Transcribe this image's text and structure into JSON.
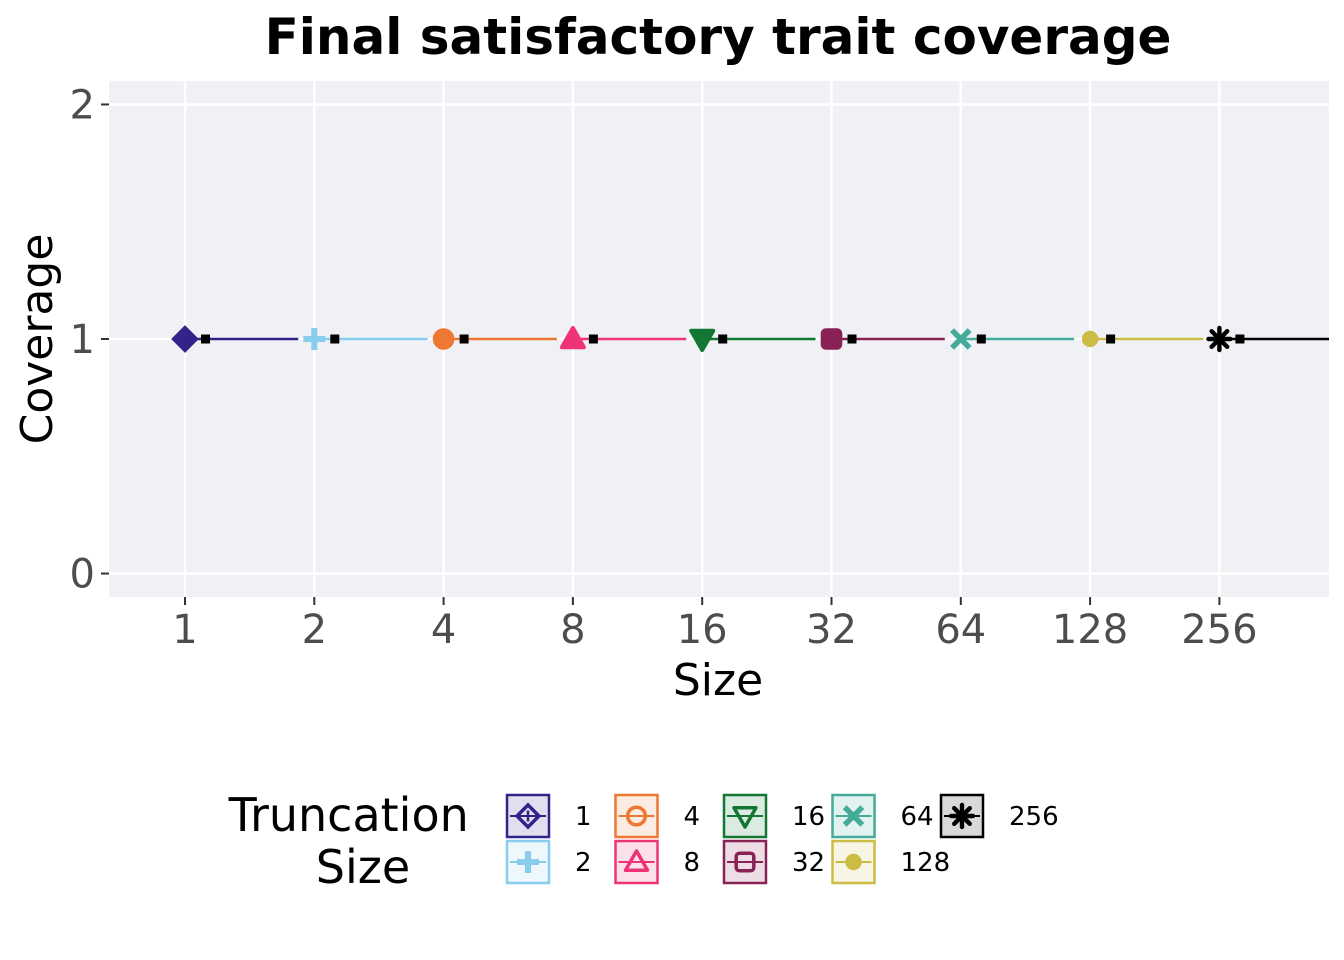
{
  "chart_data": {
    "type": "scatter",
    "title": "Final satisfactory trait coverage",
    "xlabel": "Size",
    "ylabel": "Coverage",
    "x_categories": [
      "1",
      "2",
      "4",
      "8",
      "16",
      "32",
      "64",
      "128",
      "256"
    ],
    "y_ticks": [
      "0",
      "1",
      "2"
    ],
    "ylim": [
      -0.1,
      2.1
    ],
    "grid": true,
    "legend_position": "bottom",
    "legend_title": "Truncation Size",
    "series": [
      {
        "name": "1",
        "x": "1",
        "value": 1,
        "color": "#332288",
        "marker": "diamond"
      },
      {
        "name": "2",
        "x": "2",
        "value": 1,
        "color": "#88CCEE",
        "marker": "plus"
      },
      {
        "name": "4",
        "x": "4",
        "value": 1,
        "color": "#EE7733",
        "marker": "circle-open"
      },
      {
        "name": "8",
        "x": "8",
        "value": 1,
        "color": "#EE3377",
        "marker": "triangle-up"
      },
      {
        "name": "16",
        "x": "16",
        "value": 1,
        "color": "#117733",
        "marker": "triangle-down"
      },
      {
        "name": "32",
        "x": "32",
        "value": 1,
        "color": "#882255",
        "marker": "square-open"
      },
      {
        "name": "64",
        "x": "64",
        "value": 1,
        "color": "#44AA99",
        "marker": "x"
      },
      {
        "name": "128",
        "x": "128",
        "value": 1,
        "color": "#CCBB44",
        "marker": "circle"
      },
      {
        "name": "256",
        "x": "256",
        "value": 1,
        "color": "#000000",
        "marker": "asterisk"
      }
    ],
    "panel_color": "#f0f1f5"
  }
}
